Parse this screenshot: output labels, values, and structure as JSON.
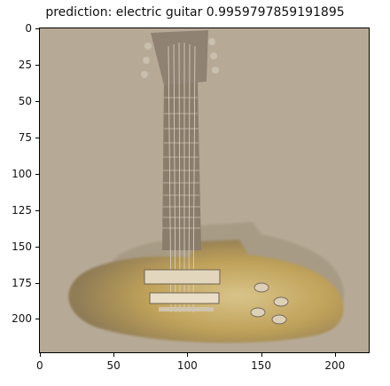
{
  "title": "prediction: electric guitar 0.9959797859191895",
  "image": {
    "subject": "electric guitar",
    "background_color": "#b7ab98",
    "body_color_edge": "#b08c3e",
    "body_color_center": "#d8c48a",
    "neck_color": "#8d7f6f"
  },
  "axes": {
    "x_ticks": [
      "0",
      "50",
      "100",
      "150",
      "200"
    ],
    "y_ticks": [
      "0",
      "25",
      "50",
      "75",
      "100",
      "125",
      "150",
      "175",
      "200"
    ],
    "xlim": [
      0,
      224
    ],
    "ylim": [
      0,
      224
    ]
  }
}
